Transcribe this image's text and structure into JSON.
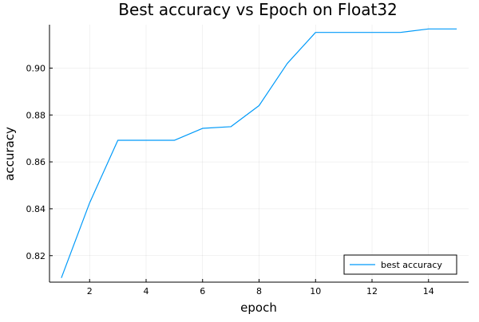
{
  "chart_data": {
    "type": "line",
    "title": "Best accuracy vs Epoch on Float32",
    "xlabel": "epoch",
    "ylabel": "accuracy",
    "x": [
      1,
      2,
      3,
      4,
      5,
      6,
      7,
      8,
      9,
      10,
      11,
      12,
      13,
      14,
      15
    ],
    "series": [
      {
        "name": "best accuracy",
        "values": [
          0.8105,
          0.8425,
          0.8692,
          0.8692,
          0.8692,
          0.8743,
          0.875,
          0.884,
          0.902,
          0.9152,
          0.9152,
          0.9152,
          0.9152,
          0.9167,
          0.9167
        ],
        "color": "#009af9"
      }
    ],
    "xlim": [
      0.58,
      15.42
    ],
    "ylim": [
      0.8087,
      0.9185
    ],
    "xticks": [
      2,
      4,
      6,
      8,
      10,
      12,
      14
    ],
    "xtick_labels": [
      "2",
      "4",
      "6",
      "8",
      "10",
      "12",
      "14"
    ],
    "yticks": [
      0.82,
      0.84,
      0.86,
      0.88,
      0.9
    ],
    "ytick_labels": [
      "0.82",
      "0.84",
      "0.86",
      "0.88",
      "0.90"
    ],
    "grid": true,
    "legend_position": "bottom-right"
  }
}
